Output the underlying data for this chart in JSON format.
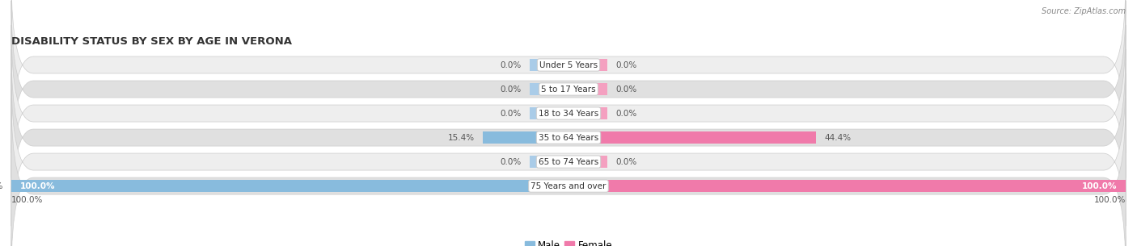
{
  "title": "DISABILITY STATUS BY SEX BY AGE IN VERONA",
  "source": "Source: ZipAtlas.com",
  "categories": [
    "Under 5 Years",
    "5 to 17 Years",
    "18 to 34 Years",
    "35 to 64 Years",
    "65 to 74 Years",
    "75 Years and over"
  ],
  "male_values": [
    0.0,
    0.0,
    0.0,
    15.4,
    0.0,
    100.0
  ],
  "female_values": [
    0.0,
    0.0,
    0.0,
    44.4,
    0.0,
    100.0
  ],
  "male_color": "#88bbdd",
  "female_color": "#f07aaa",
  "male_stub_color": "#aacce8",
  "female_stub_color": "#f4a0c0",
  "row_bg_odd": "#eeeeee",
  "row_bg_even": "#e0e0e0",
  "row_border_color": "#cccccc",
  "title_color": "#333333",
  "source_color": "#888888",
  "value_color": "#555555",
  "label_bg_color": "#ffffff",
  "label_border_color": "#cccccc",
  "max_value": 100.0,
  "stub_size": 7.0,
  "figsize": [
    14.06,
    3.05
  ],
  "dpi": 100
}
